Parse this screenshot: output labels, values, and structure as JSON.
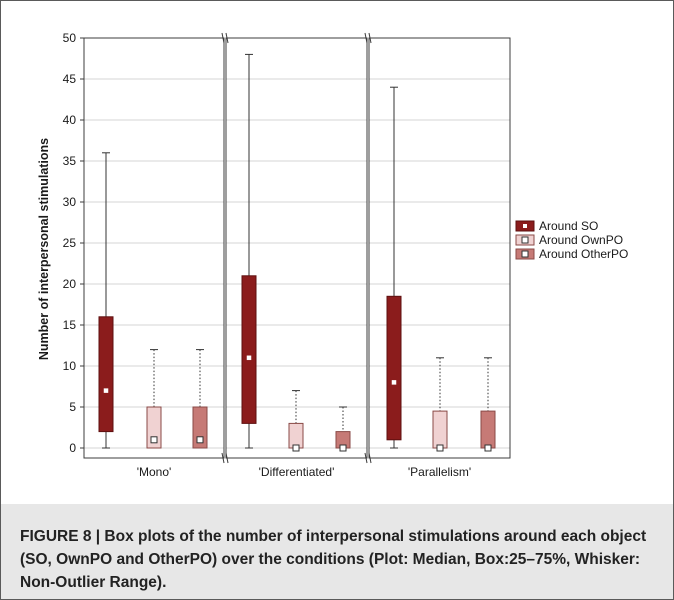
{
  "figure": {
    "caption": "FIGURE 8 | Box plots of the number of interpersonal stimulations around each object (SO, OwnPO and OtherPO) over the conditions (Plot: Median, Box:25–75%, Whisker: Non-Outlier Range)."
  },
  "chart_data": {
    "type": "box",
    "title": "",
    "xlabel": "",
    "ylabel": "Number of interpersonal stimulations",
    "ylim": [
      0,
      50
    ],
    "yticks": [
      0,
      5,
      10,
      15,
      20,
      25,
      30,
      35,
      40,
      45,
      50
    ],
    "categories": [
      "'Mono'",
      "'Differentiated'",
      "'Parallelism'"
    ],
    "legend_position": "right",
    "series": [
      {
        "name": "Around SO",
        "color": "#8b1c1c",
        "whisker_style": "solid",
        "median_marker": "filled",
        "boxes": [
          {
            "min": 0,
            "q1": 2,
            "median": 7,
            "q3": 16,
            "max": 36
          },
          {
            "min": 0,
            "q1": 3,
            "median": 11,
            "q3": 21,
            "max": 48
          },
          {
            "min": 0,
            "q1": 1,
            "median": 8,
            "q3": 18.5,
            "max": 44
          }
        ]
      },
      {
        "name": "Around OwnPO",
        "color": "#f0d2d2",
        "whisker_style": "dotted",
        "median_marker": "hollow",
        "boxes": [
          {
            "min": 0,
            "q1": 0,
            "median": 1,
            "q3": 5,
            "max": 12
          },
          {
            "min": 0,
            "q1": 0,
            "median": 0,
            "q3": 3,
            "max": 7
          },
          {
            "min": 0,
            "q1": 0,
            "median": 0,
            "q3": 4.5,
            "max": 11
          }
        ]
      },
      {
        "name": "Around OtherPO",
        "color": "#c67a76",
        "whisker_style": "dotted",
        "median_marker": "hollow",
        "boxes": [
          {
            "min": 0,
            "q1": 0,
            "median": 1,
            "q3": 5,
            "max": 12
          },
          {
            "min": 0,
            "q1": 0,
            "median": 0,
            "q3": 2,
            "max": 5
          },
          {
            "min": 0,
            "q1": 0,
            "median": 0,
            "q3": 4.5,
            "max": 11
          }
        ]
      }
    ]
  }
}
